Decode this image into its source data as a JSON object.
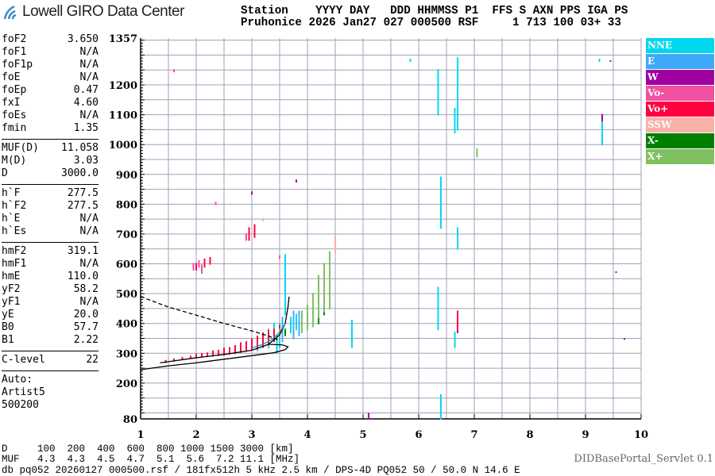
{
  "logo": {
    "text": "Lowell GIRO Data Center"
  },
  "header": {
    "line1": "Station    YYYY DAY   DDD HHMMSS P1  FFS S AXN PPS IGA PS",
    "line2": "Pruhonice 2026 Jan27 027 000500 RSF     1 713 100 03+ 33"
  },
  "params": [
    [
      {
        "k": "foF2",
        "v": "3.650"
      },
      {
        "k": "foF1",
        "v": "N/A"
      },
      {
        "k": "foF1p",
        "v": "N/A"
      },
      {
        "k": "foE",
        "v": "N/A"
      },
      {
        "k": "foEp",
        "v": "0.47"
      },
      {
        "k": "fxI",
        "v": "4.60"
      },
      {
        "k": "foEs",
        "v": "N/A"
      },
      {
        "k": "fmin",
        "v": "1.35"
      }
    ],
    [
      {
        "k": "MUF(D)",
        "v": "11.058"
      },
      {
        "k": "M(D)",
        "v": "3.03"
      },
      {
        "k": "D",
        "v": "3000.0"
      }
    ],
    [
      {
        "k": "h`F",
        "v": "277.5"
      },
      {
        "k": "h`F2",
        "v": "277.5"
      },
      {
        "k": "h`E",
        "v": "N/A"
      },
      {
        "k": "h`Es",
        "v": "N/A"
      }
    ],
    [
      {
        "k": "hmF2",
        "v": "319.1"
      },
      {
        "k": "hmF1",
        "v": "N/A"
      },
      {
        "k": "hmE",
        "v": "110.0"
      },
      {
        "k": "yF2",
        "v": "58.2"
      },
      {
        "k": "yF1",
        "v": "N/A"
      },
      {
        "k": "yE",
        "v": "20.0"
      },
      {
        "k": "B0",
        "v": "57.7"
      },
      {
        "k": "B1",
        "v": "2.22"
      }
    ],
    [
      {
        "k": "C-level",
        "v": "22"
      }
    ]
  ],
  "autoscaler": [
    "Auto:",
    "Artist5",
    "500200"
  ],
  "footer": {
    "d_row": "D     100  200  400  600  800 1000 1500 3000 [km]",
    "muf_row": "MUF   4.3  4.3  4.5  4.7  5.1  5.6  7.2 11.1 [MHz]",
    "file_row": "db pq052 20260127 000500.rsf / 181fx512h 5 kHz 2.5 km / DPS-4D PQ052 50 / 50.0 N 14.6 E",
    "servlet": "DIDBasePortal_Servlet 0.1"
  },
  "chart_data": {
    "type": "scatter",
    "xlim": [
      1,
      10
    ],
    "ylim": [
      80,
      1357
    ],
    "x_ticks": [
      "1",
      "2",
      "3",
      "4",
      "5",
      "6",
      "7",
      "8",
      "9",
      "10"
    ],
    "y_ticks": [
      "1357",
      "1200",
      "1100",
      "1000",
      "900",
      "800",
      "700",
      "600",
      "500",
      "400",
      "300",
      "200",
      "80"
    ],
    "grid": true,
    "legend_placement": "right",
    "series": [
      {
        "name": "NNE",
        "color": "#00d8f0",
        "segments": [
          [
            6.35,
            1100,
            1250
          ],
          [
            6.4,
            720,
            890
          ],
          [
            6.7,
            1050,
            1290
          ],
          [
            6.65,
            1040,
            1120
          ],
          [
            6.35,
            380,
            520
          ],
          [
            6.65,
            320,
            370
          ],
          [
            6.7,
            650,
            720
          ],
          [
            9.3,
            1000,
            1100
          ],
          [
            4.8,
            320,
            410
          ],
          [
            6.4,
            80,
            160
          ],
          [
            3.5,
            320,
            400
          ],
          [
            3.6,
            430,
            630
          ],
          [
            3.45,
            300,
            360
          ],
          [
            3.3,
            320,
            350
          ],
          [
            3.4,
            350,
            400
          ],
          [
            3.7,
            370,
            420
          ],
          [
            3.8,
            380,
            430
          ],
          [
            5.85,
            1280,
            1285
          ],
          [
            9.25,
            1280,
            1285
          ]
        ]
      },
      {
        "name": "E",
        "color": "#40a8f8",
        "segments": [
          [
            3.2,
            320,
            350
          ],
          [
            3.3,
            330,
            380
          ],
          [
            3.55,
            340,
            420
          ],
          [
            3.75,
            350,
            440
          ],
          [
            3.85,
            360,
            440
          ],
          [
            3.9,
            370,
            420
          ],
          [
            4.0,
            380,
            430
          ],
          [
            3.1,
            310,
            340
          ]
        ]
      },
      {
        "name": "W",
        "color": "#a000a0",
        "segments": [
          [
            5.1,
            82,
            100
          ],
          [
            6.7,
            370,
            440
          ],
          [
            9.3,
            1080,
            1100
          ],
          [
            9.45,
            1280,
            1282
          ],
          [
            3.0,
            835,
            840
          ],
          [
            3.8,
            875,
            880
          ],
          [
            9.7,
            348,
            352
          ],
          [
            9.55,
            572,
            576
          ]
        ]
      },
      {
        "name": "Vo-",
        "color": "#f050a0",
        "segments": [
          [
            1.95,
            580,
            600
          ],
          [
            2.05,
            590,
            610
          ],
          [
            2.1,
            570,
            595
          ],
          [
            2.9,
            680,
            700
          ],
          [
            1.6,
            1245,
            1250
          ],
          [
            2.35,
            800,
            805
          ],
          [
            3.5,
            620,
            625
          ]
        ]
      },
      {
        "name": "Vo+",
        "color": "#ff0040",
        "segments": [
          [
            1.45,
            270,
            276
          ],
          [
            1.6,
            275,
            282
          ],
          [
            1.75,
            280,
            288
          ],
          [
            1.9,
            284,
            292
          ],
          [
            2.0,
            286,
            296
          ],
          [
            2.1,
            288,
            300
          ],
          [
            2.2,
            290,
            304
          ],
          [
            2.3,
            292,
            308
          ],
          [
            2.4,
            294,
            312
          ],
          [
            2.5,
            296,
            316
          ],
          [
            2.6,
            298,
            322
          ],
          [
            2.7,
            300,
            328
          ],
          [
            2.8,
            304,
            336
          ],
          [
            2.9,
            308,
            342
          ],
          [
            3.0,
            312,
            350
          ],
          [
            3.1,
            316,
            360
          ],
          [
            3.2,
            322,
            368
          ],
          [
            3.3,
            330,
            376
          ],
          [
            3.4,
            340,
            384
          ],
          [
            3.5,
            352,
            396
          ],
          [
            2.0,
            580,
            600
          ],
          [
            2.15,
            590,
            615
          ],
          [
            2.25,
            600,
            620
          ],
          [
            2.95,
            680,
            720
          ],
          [
            3.05,
            690,
            730
          ],
          [
            6.7,
            380,
            440
          ]
        ]
      },
      {
        "name": "SSW",
        "color": "#f8b0a8",
        "segments": [
          [
            4.5,
            640,
            690
          ],
          [
            3.2,
            745,
            750
          ]
        ]
      },
      {
        "name": "X-",
        "color": "#008000",
        "segments": [
          [
            4.2,
            400,
            480
          ],
          [
            4.3,
            430,
            500
          ],
          [
            3.6,
            360,
            380
          ]
        ]
      },
      {
        "name": "X+",
        "color": "#80c060",
        "segments": [
          [
            3.9,
            370,
            440
          ],
          [
            4.0,
            380,
            460
          ],
          [
            4.1,
            390,
            500
          ],
          [
            4.2,
            420,
            560
          ],
          [
            4.3,
            440,
            600
          ],
          [
            4.4,
            450,
            640
          ],
          [
            3.5,
            350,
            380
          ],
          [
            7.05,
            960,
            985
          ]
        ]
      }
    ],
    "curves": [
      {
        "style": "solid",
        "color": "#000000",
        "points": [
          [
            1.0,
            245
          ],
          [
            1.5,
            258
          ],
          [
            2.0,
            268
          ],
          [
            2.5,
            280
          ],
          [
            3.0,
            292
          ],
          [
            3.4,
            302
          ],
          [
            3.6,
            312
          ],
          [
            3.65,
            322
          ],
          [
            3.55,
            328
          ],
          [
            3.3,
            330
          ]
        ]
      },
      {
        "style": "solid",
        "color": "#000000",
        "points": [
          [
            1.35,
            268
          ],
          [
            2.0,
            285
          ],
          [
            2.5,
            296
          ],
          [
            3.0,
            310
          ],
          [
            3.3,
            330
          ],
          [
            3.5,
            362
          ],
          [
            3.6,
            400
          ],
          [
            3.65,
            455
          ],
          [
            3.67,
            490
          ]
        ]
      },
      {
        "style": "solid",
        "color": "#00a0c0",
        "points": [
          [
            3.0,
            318
          ],
          [
            3.2,
            330
          ],
          [
            3.35,
            345
          ],
          [
            3.5,
            370
          ],
          [
            3.6,
            400
          ]
        ]
      },
      {
        "style": "dashed",
        "color": "#000000",
        "points": [
          [
            1.0,
            490
          ],
          [
            1.5,
            455
          ],
          [
            2.0,
            428
          ],
          [
            2.5,
            400
          ],
          [
            3.0,
            375
          ],
          [
            3.3,
            358
          ],
          [
            3.5,
            342
          ]
        ]
      }
    ]
  }
}
